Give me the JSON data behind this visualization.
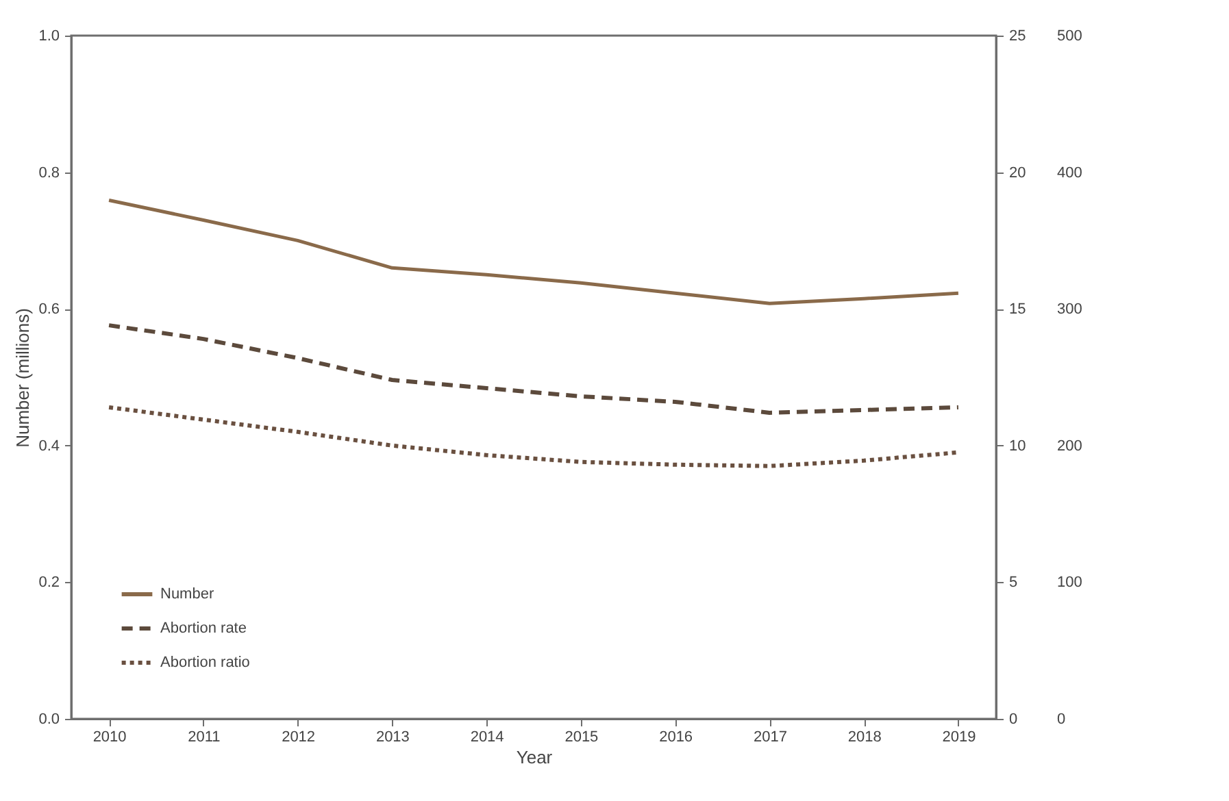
{
  "chart_data": {
    "type": "line",
    "xlabel": "Year",
    "ylabel": "Number (millions)",
    "x": [
      2010,
      2011,
      2012,
      2013,
      2014,
      2015,
      2016,
      2017,
      2018,
      2019
    ],
    "xlim": [
      2009.6,
      2019.4
    ],
    "xticks": [
      2010,
      2011,
      2012,
      2013,
      2014,
      2015,
      2016,
      2017,
      2018,
      2019
    ],
    "ylim": [
      0,
      1.0
    ],
    "yticks": [
      {
        "value": 0,
        "label": "0.0"
      },
      0.2,
      0.4,
      0.6,
      0.8,
      {
        "value": 1,
        "label": "1.0"
      }
    ],
    "y2lim": [
      0,
      25
    ],
    "y2ticks": [
      0,
      5,
      10,
      15,
      20,
      25
    ],
    "y3lim": [
      0,
      500
    ],
    "y3ticks": [
      0,
      100,
      200,
      300,
      400,
      500
    ],
    "series": [
      {
        "name": "Number",
        "color": "#8a6a4a",
        "line_style": "solid",
        "axis": "y",
        "values": [
          0.759,
          0.73,
          0.7,
          0.66,
          0.65,
          0.638,
          0.623,
          0.608,
          0.615,
          0.623
        ]
      },
      {
        "name": "Abortion rate",
        "color": "#5c4a3c",
        "line_style": "dashed",
        "axis": "y2",
        "values": [
          14.4,
          13.9,
          13.2,
          12.4,
          12.1,
          11.8,
          11.6,
          11.2,
          11.3,
          11.4
        ]
      },
      {
        "name": "Abortion ratio",
        "color": "#6a5040",
        "line_style": "dotted",
        "axis": "y3",
        "values": [
          228,
          219,
          210,
          200,
          193,
          188,
          186,
          185,
          189,
          195
        ]
      }
    ],
    "legend": "bottom left",
    "grid": false,
    "marker": "none"
  }
}
